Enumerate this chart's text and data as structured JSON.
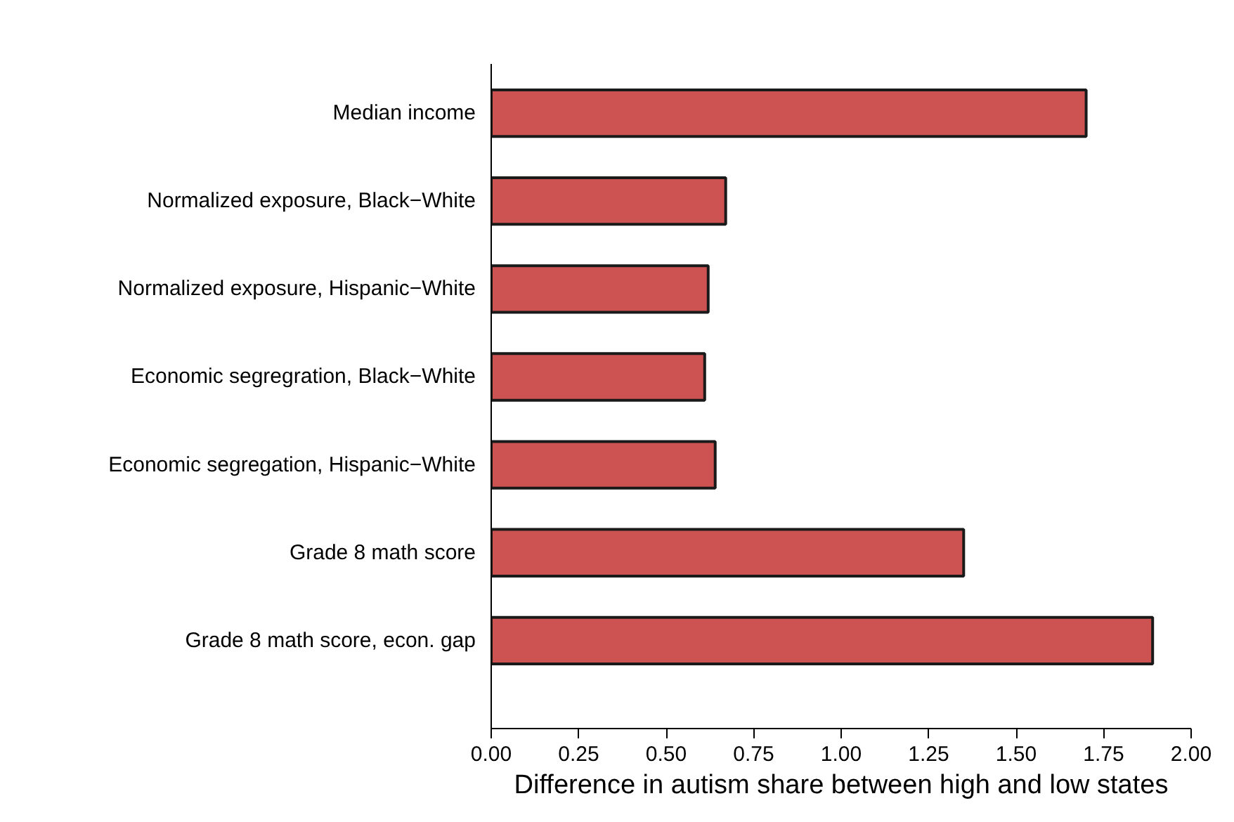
{
  "chart_data": {
    "type": "bar",
    "orientation": "horizontal",
    "xlabel": "Difference in autism share between high and low states",
    "categories": [
      "Median income",
      "Normalized exposure, Black−White",
      "Normalized exposure, Hispanic−White",
      "Economic segregration, Black−White",
      "Economic segregation, Hispanic−White",
      "Grade 8 math score",
      "Grade 8 math score, econ. gap"
    ],
    "values": [
      1.7,
      0.67,
      0.62,
      0.61,
      0.64,
      1.35,
      1.89
    ],
    "color": "#cd5353",
    "xlim": [
      0,
      2
    ],
    "xticks": [
      {
        "value": 0,
        "label": "0.00"
      },
      {
        "value": 0.25,
        "label": "0.25"
      },
      {
        "value": 0.5,
        "label": "0.50"
      },
      {
        "value": 0.75,
        "label": "0.75"
      },
      {
        "value": 1,
        "label": "1.00"
      },
      {
        "value": 1.25,
        "label": "1.25"
      },
      {
        "value": 1.5,
        "label": "1.50"
      },
      {
        "value": 1.75,
        "label": "1.75"
      },
      {
        "value": 2,
        "label": "2.00"
      }
    ],
    "grid": false
  }
}
